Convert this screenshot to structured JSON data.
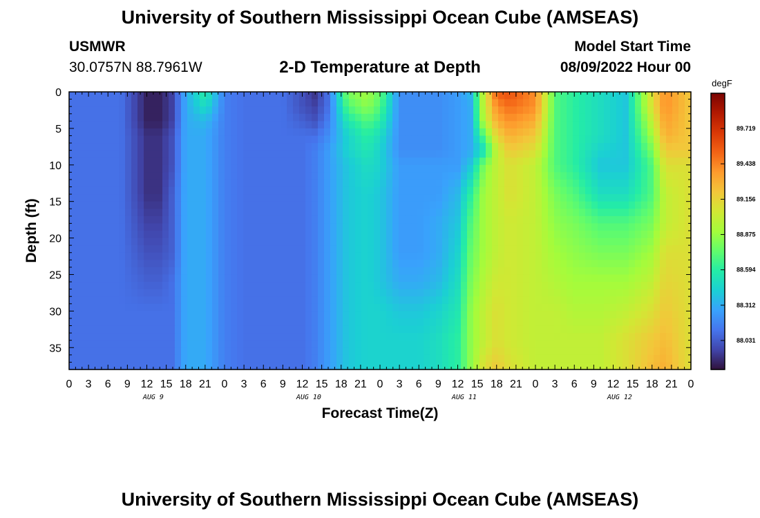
{
  "header": {
    "title": "University of Southern Mississippi Ocean Cube (AMSEAS)",
    "station": "USMWR",
    "coordinates": "30.0757N  88.7961W",
    "subtitle": "2-D Temperature at Depth",
    "model_start_label": "Model Start Time",
    "model_start_value": "08/09/2022 Hour 00"
  },
  "footer": {
    "title": "University of Southern Mississippi Ocean Cube (AMSEAS)"
  },
  "chart_data": {
    "type": "heatmap",
    "xlabel": "Forecast Time(Z)",
    "ylabel": "Depth (ft)",
    "x_ticks": [
      "0",
      "3",
      "6",
      "9",
      "12",
      "15",
      "18",
      "21",
      "0",
      "3",
      "6",
      "9",
      "12",
      "15",
      "18",
      "21",
      "0",
      "3",
      "6",
      "9",
      "12",
      "15",
      "18",
      "21",
      "0",
      "3",
      "6",
      "9",
      "12",
      "15",
      "18",
      "21",
      "0"
    ],
    "x_range_hours": [
      0,
      96
    ],
    "day_labels": [
      {
        "label": "AUG 9",
        "hour": 13
      },
      {
        "label": "AUG 10",
        "hour": 37
      },
      {
        "label": "AUG 11",
        "hour": 61
      },
      {
        "label": "AUG 12",
        "hour": 85
      }
    ],
    "y_ticks": [
      "0",
      "5",
      "10",
      "15",
      "20",
      "25",
      "30",
      "35"
    ],
    "ylim": [
      0,
      38
    ],
    "y_inverted": true,
    "colorbar": {
      "unit": "degF",
      "tick_labels": [
        "89.719",
        "89.438",
        "89.156",
        "88.875",
        "88.594",
        "88.312",
        "88.031"
      ],
      "tick_values": [
        89.719,
        89.438,
        89.156,
        88.875,
        88.594,
        88.312,
        88.031
      ],
      "range": [
        87.8,
        90.0
      ],
      "colors": [
        "#30123b",
        "#4145ab",
        "#4675ed",
        "#39a2fc",
        "#1bcfd4",
        "#24eca6",
        "#61fc6c",
        "#a4fc3b",
        "#d1e834",
        "#f3c63a",
        "#fe9b2d",
        "#f36315",
        "#d93806",
        "#b11901",
        "#7a0402"
      ]
    },
    "temperature_degF": {
      "hours": [
        0,
        4,
        8,
        12,
        14,
        16,
        18,
        21,
        24,
        27,
        30,
        33,
        36,
        38,
        40,
        43,
        46,
        48,
        51,
        54,
        57,
        60,
        62,
        64,
        66,
        68,
        72,
        75,
        78,
        82,
        86,
        90,
        92,
        96
      ],
      "depths_ft": [
        0,
        2,
        4,
        6,
        8,
        10,
        14,
        18,
        22,
        26,
        30,
        34,
        38
      ],
      "values": [
        [
          88.1,
          88.1,
          88.1,
          87.85,
          87.85,
          87.95,
          88.3,
          88.6,
          88.15,
          88.1,
          88.1,
          88.1,
          88.0,
          87.9,
          88.1,
          88.8,
          88.9,
          88.75,
          88.2,
          88.2,
          88.2,
          88.25,
          88.35,
          89.0,
          89.55,
          89.6,
          89.4,
          88.7,
          88.6,
          88.5,
          88.4,
          89.1,
          89.4,
          89.2
        ],
        [
          88.1,
          88.1,
          88.1,
          87.85,
          87.85,
          87.95,
          88.3,
          88.5,
          88.15,
          88.1,
          88.1,
          88.1,
          88.0,
          87.95,
          88.1,
          88.7,
          88.85,
          88.7,
          88.2,
          88.2,
          88.2,
          88.25,
          88.3,
          89.0,
          89.4,
          89.5,
          89.4,
          88.7,
          88.6,
          88.5,
          88.4,
          89.1,
          89.4,
          89.2
        ],
        [
          88.1,
          88.1,
          88.1,
          87.85,
          87.85,
          87.95,
          88.3,
          88.35,
          88.15,
          88.1,
          88.1,
          88.1,
          88.05,
          88.0,
          88.15,
          88.55,
          88.7,
          88.6,
          88.2,
          88.2,
          88.2,
          88.25,
          88.3,
          88.95,
          89.3,
          89.4,
          89.3,
          88.7,
          88.6,
          88.5,
          88.4,
          89.0,
          89.35,
          89.2
        ],
        [
          88.1,
          88.1,
          88.1,
          87.9,
          87.9,
          88.0,
          88.3,
          88.3,
          88.15,
          88.1,
          88.1,
          88.1,
          88.1,
          88.1,
          88.2,
          88.45,
          88.6,
          88.5,
          88.2,
          88.2,
          88.2,
          88.25,
          88.3,
          88.7,
          89.15,
          89.3,
          89.2,
          88.7,
          88.6,
          88.5,
          88.4,
          88.9,
          89.3,
          89.2
        ],
        [
          88.1,
          88.1,
          88.1,
          87.9,
          87.9,
          88.0,
          88.3,
          88.3,
          88.15,
          88.1,
          88.1,
          88.1,
          88.1,
          88.15,
          88.25,
          88.45,
          88.55,
          88.45,
          88.2,
          88.2,
          88.2,
          88.25,
          88.3,
          88.5,
          89.0,
          89.2,
          89.1,
          88.7,
          88.6,
          88.45,
          88.4,
          88.8,
          89.2,
          89.2
        ],
        [
          88.1,
          88.1,
          88.1,
          87.9,
          87.9,
          88.0,
          88.3,
          88.3,
          88.15,
          88.1,
          88.1,
          88.1,
          88.1,
          88.15,
          88.25,
          88.4,
          88.5,
          88.45,
          88.25,
          88.25,
          88.25,
          88.25,
          88.4,
          88.8,
          89.0,
          89.1,
          89.0,
          88.7,
          88.6,
          88.4,
          88.4,
          88.7,
          89.1,
          89.1
        ],
        [
          88.1,
          88.1,
          88.1,
          87.9,
          87.9,
          88.05,
          88.3,
          88.3,
          88.15,
          88.1,
          88.1,
          88.1,
          88.1,
          88.15,
          88.25,
          88.4,
          88.45,
          88.4,
          88.25,
          88.25,
          88.25,
          88.35,
          88.6,
          88.9,
          89.0,
          89.1,
          89.0,
          88.8,
          88.7,
          88.5,
          88.5,
          88.7,
          89.0,
          89.1
        ],
        [
          88.1,
          88.1,
          88.1,
          87.95,
          87.95,
          88.05,
          88.3,
          88.3,
          88.15,
          88.1,
          88.1,
          88.1,
          88.1,
          88.15,
          88.25,
          88.4,
          88.45,
          88.4,
          88.25,
          88.25,
          88.3,
          88.4,
          88.7,
          88.9,
          89.0,
          89.05,
          89.0,
          88.85,
          88.8,
          88.7,
          88.7,
          88.8,
          89.0,
          89.1
        ],
        [
          88.1,
          88.1,
          88.1,
          88.0,
          88.0,
          88.05,
          88.3,
          88.3,
          88.15,
          88.1,
          88.1,
          88.1,
          88.1,
          88.15,
          88.25,
          88.4,
          88.45,
          88.4,
          88.25,
          88.25,
          88.3,
          88.45,
          88.75,
          88.9,
          89.0,
          89.05,
          89.0,
          88.9,
          88.85,
          88.8,
          88.8,
          88.9,
          89.1,
          89.1
        ],
        [
          88.1,
          88.1,
          88.1,
          88.05,
          88.05,
          88.1,
          88.3,
          88.3,
          88.15,
          88.1,
          88.1,
          88.1,
          88.1,
          88.15,
          88.25,
          88.4,
          88.45,
          88.4,
          88.3,
          88.3,
          88.35,
          88.5,
          88.8,
          88.95,
          89.05,
          89.05,
          89.0,
          88.95,
          88.9,
          88.9,
          88.9,
          89.0,
          89.15,
          89.1
        ],
        [
          88.1,
          88.1,
          88.1,
          88.1,
          88.1,
          88.1,
          88.3,
          88.3,
          88.15,
          88.1,
          88.1,
          88.1,
          88.1,
          88.15,
          88.25,
          88.4,
          88.45,
          88.45,
          88.4,
          88.4,
          88.45,
          88.55,
          88.85,
          89.0,
          89.1,
          89.05,
          89.0,
          89.0,
          88.95,
          88.95,
          89.0,
          89.1,
          89.2,
          89.1
        ],
        [
          88.1,
          88.1,
          88.1,
          88.1,
          88.1,
          88.1,
          88.3,
          88.3,
          88.15,
          88.1,
          88.1,
          88.1,
          88.1,
          88.15,
          88.25,
          88.4,
          88.45,
          88.45,
          88.45,
          88.45,
          88.5,
          88.6,
          88.85,
          89.0,
          89.1,
          89.05,
          89.0,
          89.0,
          89.0,
          89.0,
          89.1,
          89.2,
          89.25,
          89.1
        ],
        [
          88.1,
          88.1,
          88.1,
          88.1,
          88.1,
          88.1,
          88.3,
          88.3,
          88.15,
          88.1,
          88.1,
          88.1,
          88.1,
          88.15,
          88.25,
          88.4,
          88.45,
          88.45,
          88.45,
          88.45,
          88.5,
          88.6,
          88.85,
          89.1,
          89.2,
          89.1,
          89.0,
          89.0,
          89.0,
          89.0,
          89.1,
          89.25,
          89.3,
          89.1
        ]
      ]
    }
  }
}
